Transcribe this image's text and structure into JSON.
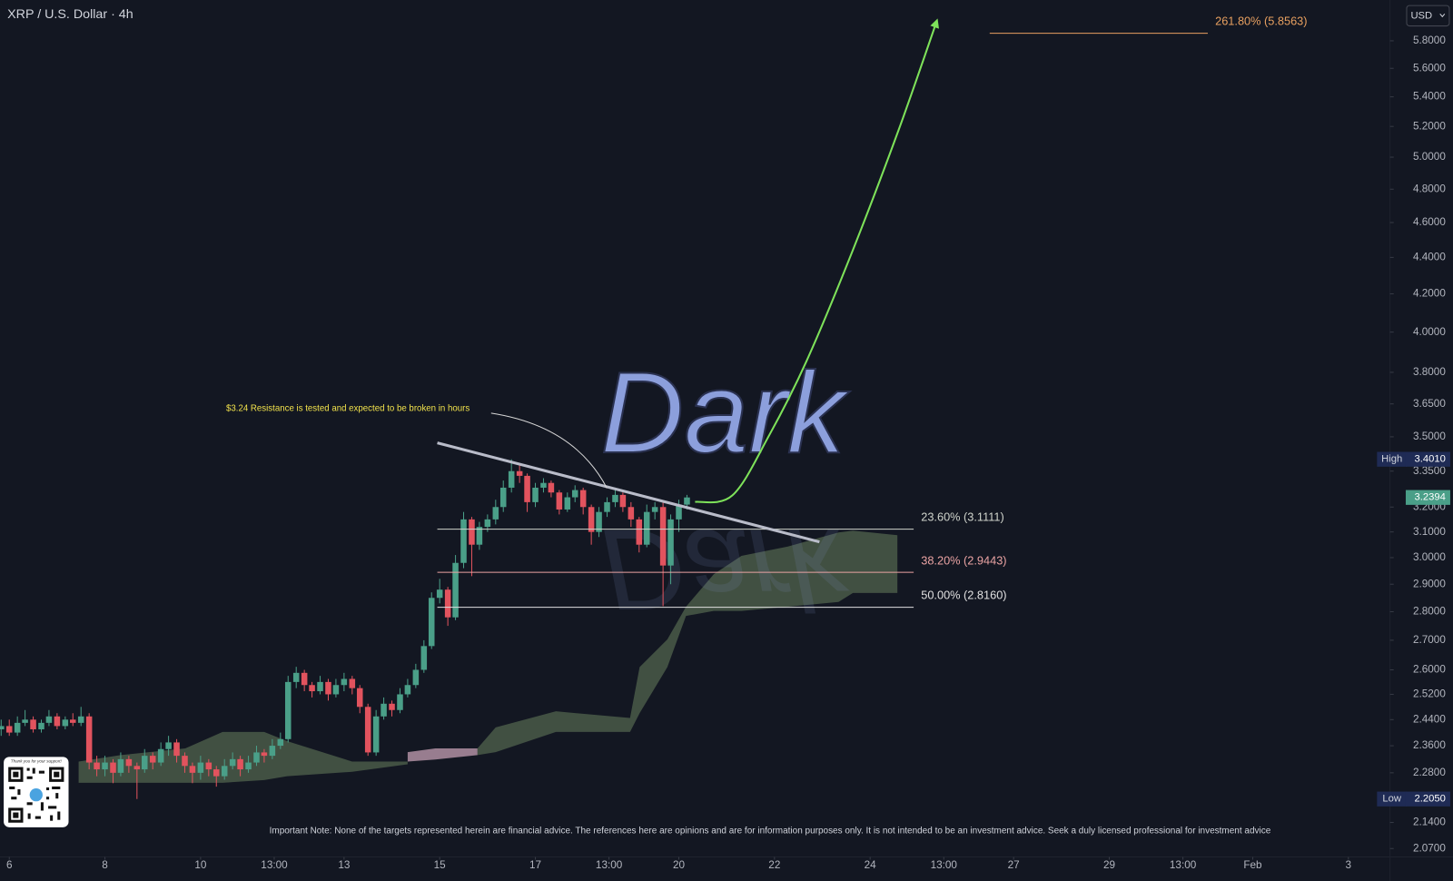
{
  "header": {
    "symbol": "XRP / U.S. Dollar · 4h",
    "currency": "USD"
  },
  "chart_data": {
    "type": "candlestick",
    "log_scale": true,
    "xlim": [
      5.806,
      34.87
    ],
    "ylim": [
      2.048,
      6.11
    ],
    "xticks": [
      6,
      8,
      10,
      {
        "value": 11.54,
        "label": "13:00"
      },
      13,
      15,
      17,
      {
        "value": 18.54,
        "label": "13:00"
      },
      20,
      22,
      24,
      {
        "value": 25.54,
        "label": "13:00"
      },
      27,
      29,
      {
        "value": 30.54,
        "label": "13:00"
      },
      {
        "value": 32,
        "label": "Feb"
      },
      {
        "value": 34,
        "label": "3"
      }
    ],
    "yticks": [
      {
        "value": 2.07,
        "label": "2.0700"
      },
      {
        "value": 2.14,
        "label": "2.1400"
      },
      {
        "value": 2.28,
        "label": "2.2800"
      },
      {
        "value": 2.36,
        "label": "2.3600"
      },
      {
        "value": 2.44,
        "label": "2.4400"
      },
      {
        "value": 2.52,
        "label": "2.5200"
      },
      {
        "value": 2.6,
        "label": "2.6000"
      },
      {
        "value": 2.7,
        "label": "2.7000"
      },
      {
        "value": 2.8,
        "label": "2.8000"
      },
      {
        "value": 2.9,
        "label": "2.9000"
      },
      {
        "value": 3.0,
        "label": "3.0000"
      },
      {
        "value": 3.1,
        "label": "3.1000"
      },
      {
        "value": 3.2,
        "label": "3.2000"
      },
      {
        "value": 3.35,
        "label": "3.3500"
      },
      {
        "value": 3.5,
        "label": "3.5000"
      },
      {
        "value": 3.65,
        "label": "3.6500"
      },
      {
        "value": 3.8,
        "label": "3.8000"
      },
      {
        "value": 4.0,
        "label": "4.0000"
      },
      {
        "value": 4.2,
        "label": "4.2000"
      },
      {
        "value": 4.4,
        "label": "4.4000"
      },
      {
        "value": 4.6,
        "label": "4.6000"
      },
      {
        "value": 4.8,
        "label": "4.8000"
      },
      {
        "value": 5.0,
        "label": "5.0000"
      },
      {
        "value": 5.2,
        "label": "5.2000"
      },
      {
        "value": 5.4,
        "label": "5.4000"
      },
      {
        "value": 5.6,
        "label": "5.6000"
      },
      {
        "value": 5.8,
        "label": "5.8000"
      }
    ],
    "x": [
      5.83,
      6,
      6.17,
      6.33,
      6.5,
      6.67,
      6.83,
      7,
      7.17,
      7.33,
      7.5,
      7.67,
      7.83,
      8,
      8.17,
      8.33,
      8.5,
      8.67,
      8.83,
      9,
      9.17,
      9.33,
      9.5,
      9.67,
      9.83,
      10,
      10.17,
      10.33,
      10.5,
      10.67,
      10.83,
      11,
      11.17,
      11.33,
      11.5,
      11.67,
      11.83,
      12,
      12.17,
      12.33,
      12.5,
      12.67,
      12.83,
      13,
      13.17,
      13.33,
      13.5,
      13.67,
      13.83,
      14,
      14.17,
      14.33,
      14.5,
      14.67,
      14.83,
      15,
      15.17,
      15.33,
      15.5,
      15.67,
      15.83,
      16,
      16.17,
      16.33,
      16.5,
      16.67,
      16.83,
      17,
      17.17,
      17.33,
      17.5,
      17.67,
      17.83,
      18,
      18.17,
      18.33,
      18.5,
      18.67,
      18.83,
      19,
      19.17,
      19.33,
      19.5,
      19.67,
      19.83,
      20,
      20.17
    ],
    "series": [
      {
        "up_color": "#4a9f88",
        "down_color": "#e2535e",
        "open": [
          2.41,
          2.42,
          2.4,
          2.43,
          2.44,
          2.41,
          2.43,
          2.45,
          2.42,
          2.44,
          2.43,
          2.45,
          2.31,
          2.29,
          2.31,
          2.28,
          2.32,
          2.3,
          2.29,
          2.33,
          2.31,
          2.35,
          2.37,
          2.33,
          2.3,
          2.28,
          2.31,
          2.29,
          2.27,
          2.3,
          2.32,
          2.29,
          2.31,
          2.34,
          2.33,
          2.36,
          2.38,
          2.56,
          2.59,
          2.55,
          2.53,
          2.56,
          2.52,
          2.55,
          2.57,
          2.54,
          2.48,
          2.34,
          2.45,
          2.49,
          2.47,
          2.52,
          2.55,
          2.6,
          2.68,
          2.85,
          2.88,
          2.78,
          2.98,
          3.15,
          3.05,
          3.12,
          3.15,
          3.2,
          3.28,
          3.35,
          3.33,
          3.22,
          3.28,
          3.3,
          3.26,
          3.19,
          3.24,
          3.27,
          3.2,
          3.1,
          3.18,
          3.22,
          3.25,
          3.2,
          3.15,
          3.05,
          3.18,
          3.2,
          2.97,
          3.15,
          3.21
        ],
        "high": [
          2.44,
          2.44,
          2.45,
          2.47,
          2.45,
          2.44,
          2.47,
          2.46,
          2.45,
          2.46,
          2.48,
          2.46,
          2.33,
          2.33,
          2.32,
          2.34,
          2.33,
          2.31,
          2.35,
          2.34,
          2.37,
          2.39,
          2.38,
          2.34,
          2.31,
          2.33,
          2.32,
          2.3,
          2.32,
          2.34,
          2.33,
          2.33,
          2.36,
          2.35,
          2.38,
          2.4,
          2.58,
          2.61,
          2.6,
          2.56,
          2.58,
          2.57,
          2.57,
          2.59,
          2.58,
          2.55,
          2.49,
          2.47,
          2.51,
          2.5,
          2.54,
          2.57,
          2.62,
          2.7,
          2.87,
          2.92,
          2.89,
          3.01,
          3.18,
          3.16,
          3.14,
          3.17,
          3.23,
          3.31,
          3.401,
          3.38,
          3.34,
          3.3,
          3.32,
          3.31,
          3.27,
          3.26,
          3.29,
          3.28,
          3.21,
          3.2,
          3.24,
          3.28,
          3.26,
          3.22,
          3.16,
          3.21,
          3.22,
          3.22,
          3.17,
          3.23,
          3.25
        ],
        "low": [
          2.39,
          2.39,
          2.39,
          2.42,
          2.4,
          2.4,
          2.42,
          2.41,
          2.41,
          2.42,
          2.42,
          2.29,
          2.27,
          2.27,
          2.25,
          2.27,
          2.28,
          2.205,
          2.28,
          2.29,
          2.3,
          2.33,
          2.31,
          2.28,
          2.25,
          2.26,
          2.27,
          2.24,
          2.26,
          2.29,
          2.27,
          2.28,
          2.3,
          2.31,
          2.32,
          2.35,
          2.37,
          2.54,
          2.53,
          2.51,
          2.52,
          2.5,
          2.51,
          2.53,
          2.52,
          2.46,
          2.33,
          2.33,
          2.44,
          2.45,
          2.46,
          2.51,
          2.54,
          2.59,
          2.67,
          2.83,
          2.75,
          2.77,
          2.96,
          2.93,
          3.03,
          3.1,
          3.13,
          3.18,
          3.26,
          3.3,
          3.18,
          3.2,
          3.26,
          3.24,
          3.17,
          3.18,
          3.22,
          3.17,
          3.05,
          3.08,
          3.16,
          3.2,
          3.18,
          3.12,
          3.02,
          3.04,
          3.15,
          2.82,
          2.9,
          3.1,
          3.19
        ],
        "close": [
          2.42,
          2.4,
          2.43,
          2.44,
          2.41,
          2.43,
          2.45,
          2.42,
          2.44,
          2.43,
          2.45,
          2.31,
          2.29,
          2.31,
          2.28,
          2.32,
          2.3,
          2.29,
          2.33,
          2.31,
          2.35,
          2.37,
          2.33,
          2.3,
          2.28,
          2.31,
          2.29,
          2.27,
          2.3,
          2.32,
          2.29,
          2.31,
          2.34,
          2.33,
          2.36,
          2.38,
          2.56,
          2.59,
          2.55,
          2.53,
          2.56,
          2.52,
          2.55,
          2.57,
          2.54,
          2.48,
          2.34,
          2.45,
          2.49,
          2.47,
          2.52,
          2.55,
          2.6,
          2.68,
          2.85,
          2.88,
          2.78,
          2.98,
          3.15,
          3.05,
          3.12,
          3.15,
          3.2,
          3.28,
          3.35,
          3.33,
          3.22,
          3.28,
          3.3,
          3.26,
          3.19,
          3.24,
          3.27,
          3.2,
          3.1,
          3.18,
          3.22,
          3.25,
          3.2,
          3.15,
          3.05,
          3.18,
          3.2,
          2.97,
          3.15,
          3.21,
          3.2394
        ]
      }
    ],
    "cloud": [
      {
        "color": "rgba(128,160,112,0.42)",
        "x": [
          7.45,
          8.33,
          9.68,
          10.46,
          11.33,
          11.81,
          13.17,
          14.33
        ],
        "upper": [
          2.313,
          2.332,
          2.352,
          2.402,
          2.402,
          2.374,
          2.313,
          2.313
        ],
        "lower": [
          2.251,
          2.251,
          2.251,
          2.251,
          2.259,
          2.27,
          2.283,
          2.305
        ]
      },
      {
        "color": "rgba(210,170,190,0.7)",
        "x": [
          14.33,
          14.91,
          15.79
        ],
        "upper": [
          2.341,
          2.352,
          2.352
        ],
        "lower": [
          2.313,
          2.319,
          2.332
        ]
      },
      {
        "color": "rgba(128,160,112,0.42)",
        "x": [
          15.79,
          16.17,
          17.43,
          18.98,
          19.18,
          19.76,
          20.15,
          20.73,
          21.31,
          22.28,
          23.34,
          23.64,
          24.57
        ],
        "upper": [
          2.352,
          2.416,
          2.466,
          2.445,
          2.609,
          2.703,
          2.818,
          2.937,
          3.007,
          3.043,
          3.098,
          3.105,
          3.087
        ],
        "lower": [
          2.332,
          2.341,
          2.402,
          2.402,
          2.46,
          2.609,
          2.785,
          2.803,
          2.803,
          2.818,
          2.835,
          2.868,
          2.868
        ]
      }
    ],
    "levels": [
      {
        "label": "23.60% (3.1111)",
        "value": 3.1111,
        "color": "#d0d4cc",
        "x": [
          14.95,
          24.91
        ]
      },
      {
        "label": "38.20% (2.9443)",
        "value": 2.9443,
        "color": "#eaa3a3",
        "x": [
          14.95,
          24.91
        ]
      },
      {
        "label": "50.00% (2.8160)",
        "value": 2.816,
        "color": "#e0e0e0",
        "x": [
          14.95,
          24.91
        ]
      },
      {
        "label": "261.80% (5.8563)",
        "value": 5.8563,
        "color": "#e8a060",
        "x": [
          26.5,
          31.06
        ]
      }
    ],
    "trendline": {
      "x": [
        14.95,
        22.94
      ],
      "y": [
        3.473,
        3.061
      ],
      "color": "#b9bcc9"
    },
    "projection": {
      "x": [
        20.34,
        21.12,
        21.89,
        22.67,
        23.64,
        24.6,
        25.38
      ],
      "y": [
        3.221,
        3.248,
        3.507,
        3.855,
        4.442,
        5.18,
        5.934
      ],
      "color": "#7ee25a"
    },
    "high": {
      "label": "High",
      "value": 3.401,
      "value_label": "3.4010"
    },
    "low": {
      "label": "Low",
      "value": 2.205,
      "value_label": "2.2050"
    },
    "last_price": {
      "value": 3.2394,
      "color": "#4a9f88"
    },
    "annotation": "$3.24 Resistance is tested and expected to be broken in hours",
    "watermark": "Dark"
  },
  "note": "Important Note: None of the targets represented herein are financial advice. The references here are opinions and are for information purposes only. It is not intended to be an investment advice. Seek a duly licensed professional for investment advice",
  "qr_caption": "Thank you for your support!"
}
